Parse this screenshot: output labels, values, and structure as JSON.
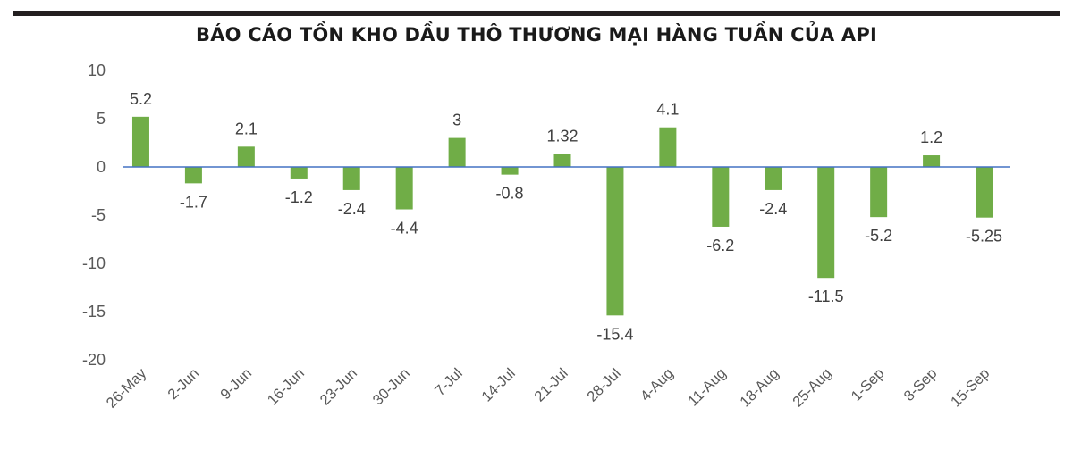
{
  "chart_data": {
    "type": "bar",
    "title": "BÁO CÁO TỒN KHO DẦU THÔ THƯƠNG MẠI HÀNG TUẦN CỦA API",
    "categories": [
      "26-May",
      "2-Jun",
      "9-Jun",
      "16-Jun",
      "23-Jun",
      "30-Jun",
      "7-Jul",
      "14-Jul",
      "21-Jul",
      "28-Jul",
      "4-Aug",
      "11-Aug",
      "18-Aug",
      "25-Aug",
      "1-Sep",
      "8-Sep",
      "15-Sep"
    ],
    "values": [
      5.2,
      -1.7,
      2.1,
      -1.2,
      -2.4,
      -4.4,
      3,
      -0.8,
      1.32,
      -15.4,
      4.1,
      -6.2,
      -2.4,
      -11.5,
      -5.2,
      1.2,
      -5.25
    ],
    "data_labels": [
      "5.2",
      "-1.7",
      "2.1",
      "-1.2",
      "-2.4",
      "-4.4",
      "3",
      "-0.8",
      "1.32",
      "-15.4",
      "4.1",
      "-6.2",
      "-2.4",
      "-11.5",
      "-5.2",
      "1.2",
      "-5.25"
    ],
    "ylim": [
      -20,
      10
    ],
    "yticks": [
      10,
      5,
      0,
      -5,
      -10,
      -15,
      -20
    ],
    "xlabel": "",
    "ylabel": "",
    "grid": false,
    "legend": "none",
    "bar_color": "#70ad47",
    "zero_line_color": "#4472c4"
  }
}
